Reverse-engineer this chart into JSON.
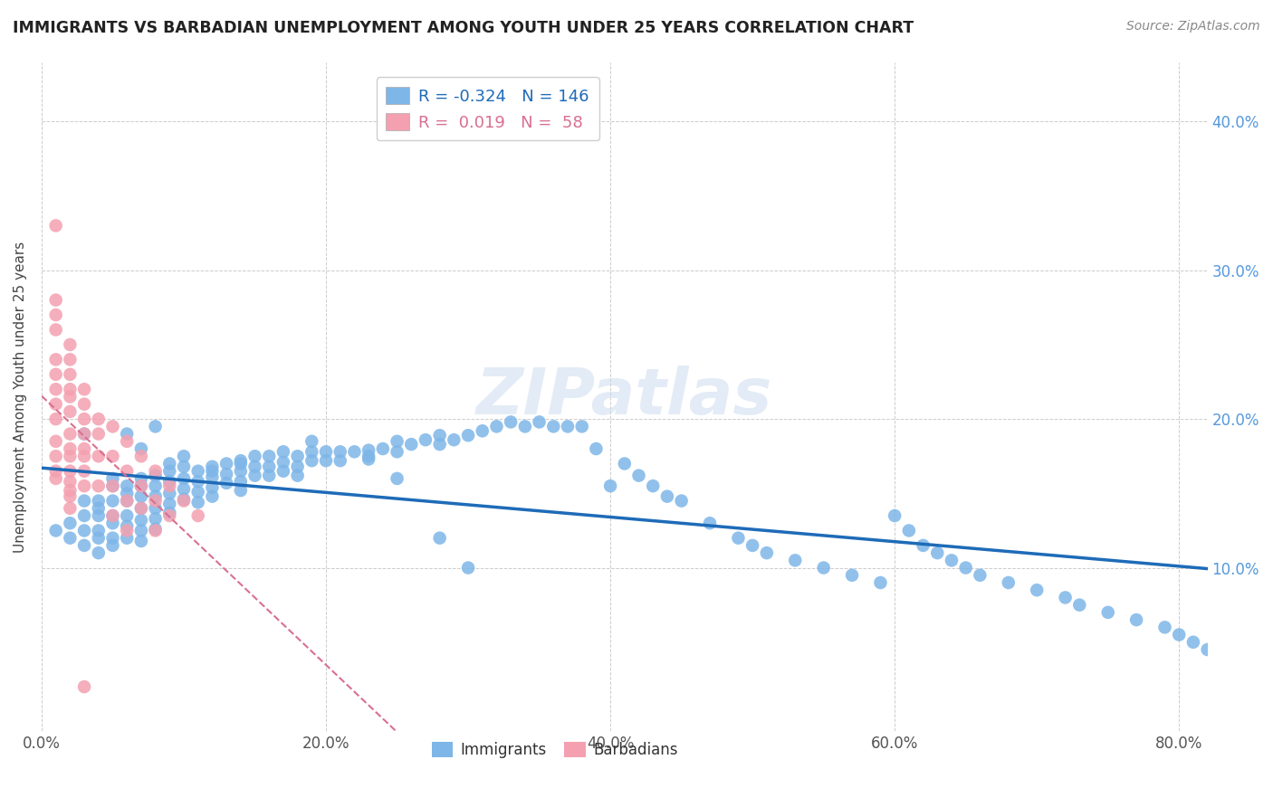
{
  "title": "IMMIGRANTS VS BARBADIAN UNEMPLOYMENT AMONG YOUTH UNDER 25 YEARS CORRELATION CHART",
  "source": "Source: ZipAtlas.com",
  "ylabel": "Unemployment Among Youth under 25 years",
  "xlabel_ticks": [
    "0.0%",
    "20.0%",
    "40.0%",
    "60.0%",
    "80.0%"
  ],
  "ylabel_ticks": [
    "10.0%",
    "20.0%",
    "30.0%",
    "40.0%"
  ],
  "xlim": [
    0.0,
    0.82
  ],
  "ylim": [
    -0.01,
    0.44
  ],
  "legend_blue_R": "-0.324",
  "legend_blue_N": "146",
  "legend_pink_R": "0.019",
  "legend_pink_N": "58",
  "watermark": "ZIPatlas",
  "blue_color": "#7EB6E8",
  "pink_color": "#F4A0B0",
  "blue_line_color": "#1E6BB8",
  "pink_line_color": "#D87090",
  "background_color": "#FFFFFF",
  "grid_color": "#CCCCCC",
  "immigrants_x": [
    0.01,
    0.02,
    0.02,
    0.03,
    0.03,
    0.03,
    0.03,
    0.04,
    0.04,
    0.04,
    0.04,
    0.04,
    0.05,
    0.05,
    0.05,
    0.05,
    0.05,
    0.05,
    0.06,
    0.06,
    0.06,
    0.06,
    0.06,
    0.06,
    0.07,
    0.07,
    0.07,
    0.07,
    0.07,
    0.07,
    0.07,
    0.08,
    0.08,
    0.08,
    0.08,
    0.08,
    0.08,
    0.09,
    0.09,
    0.09,
    0.09,
    0.09,
    0.1,
    0.1,
    0.1,
    0.1,
    0.11,
    0.11,
    0.11,
    0.11,
    0.12,
    0.12,
    0.12,
    0.12,
    0.13,
    0.13,
    0.13,
    0.14,
    0.14,
    0.14,
    0.14,
    0.15,
    0.15,
    0.15,
    0.16,
    0.16,
    0.16,
    0.17,
    0.17,
    0.17,
    0.18,
    0.18,
    0.18,
    0.19,
    0.19,
    0.2,
    0.2,
    0.21,
    0.21,
    0.22,
    0.23,
    0.23,
    0.24,
    0.25,
    0.25,
    0.26,
    0.27,
    0.28,
    0.28,
    0.29,
    0.3,
    0.31,
    0.32,
    0.33,
    0.34,
    0.35,
    0.36,
    0.37,
    0.38,
    0.39,
    0.4,
    0.41,
    0.42,
    0.43,
    0.44,
    0.45,
    0.47,
    0.49,
    0.5,
    0.51,
    0.53,
    0.55,
    0.57,
    0.59,
    0.6,
    0.61,
    0.62,
    0.63,
    0.64,
    0.65,
    0.66,
    0.68,
    0.7,
    0.72,
    0.73,
    0.75,
    0.77,
    0.79,
    0.8,
    0.81,
    0.82,
    0.03,
    0.04,
    0.05,
    0.06,
    0.07,
    0.08,
    0.09,
    0.1,
    0.12,
    0.14,
    0.19,
    0.23,
    0.25,
    0.28,
    0.3
  ],
  "immigrants_y": [
    0.125,
    0.13,
    0.12,
    0.145,
    0.135,
    0.125,
    0.115,
    0.14,
    0.135,
    0.125,
    0.12,
    0.11,
    0.155,
    0.145,
    0.135,
    0.13,
    0.12,
    0.115,
    0.155,
    0.15,
    0.145,
    0.135,
    0.128,
    0.12,
    0.16,
    0.155,
    0.148,
    0.14,
    0.132,
    0.125,
    0.118,
    0.162,
    0.155,
    0.148,
    0.14,
    0.133,
    0.126,
    0.165,
    0.158,
    0.15,
    0.143,
    0.137,
    0.168,
    0.16,
    0.153,
    0.146,
    0.165,
    0.158,
    0.151,
    0.144,
    0.168,
    0.161,
    0.154,
    0.148,
    0.17,
    0.163,
    0.157,
    0.172,
    0.165,
    0.158,
    0.152,
    0.175,
    0.168,
    0.162,
    0.175,
    0.168,
    0.162,
    0.178,
    0.171,
    0.165,
    0.175,
    0.168,
    0.162,
    0.178,
    0.172,
    0.178,
    0.172,
    0.178,
    0.172,
    0.178,
    0.179,
    0.173,
    0.18,
    0.185,
    0.178,
    0.183,
    0.186,
    0.189,
    0.183,
    0.186,
    0.189,
    0.192,
    0.195,
    0.198,
    0.195,
    0.198,
    0.195,
    0.195,
    0.195,
    0.18,
    0.155,
    0.17,
    0.162,
    0.155,
    0.148,
    0.145,
    0.13,
    0.12,
    0.115,
    0.11,
    0.105,
    0.1,
    0.095,
    0.09,
    0.135,
    0.125,
    0.115,
    0.11,
    0.105,
    0.1,
    0.095,
    0.09,
    0.085,
    0.08,
    0.075,
    0.07,
    0.065,
    0.06,
    0.055,
    0.05,
    0.045,
    0.19,
    0.145,
    0.16,
    0.19,
    0.18,
    0.195,
    0.17,
    0.175,
    0.165,
    0.17,
    0.185,
    0.175,
    0.16,
    0.12,
    0.1
  ],
  "barbadians_x": [
    0.01,
    0.01,
    0.01,
    0.01,
    0.01,
    0.01,
    0.01,
    0.01,
    0.01,
    0.01,
    0.01,
    0.01,
    0.01,
    0.02,
    0.02,
    0.02,
    0.02,
    0.02,
    0.02,
    0.02,
    0.02,
    0.02,
    0.02,
    0.02,
    0.02,
    0.02,
    0.02,
    0.03,
    0.03,
    0.03,
    0.03,
    0.03,
    0.03,
    0.03,
    0.03,
    0.03,
    0.04,
    0.04,
    0.04,
    0.04,
    0.05,
    0.05,
    0.05,
    0.05,
    0.06,
    0.06,
    0.06,
    0.06,
    0.07,
    0.07,
    0.07,
    0.08,
    0.08,
    0.08,
    0.09,
    0.09,
    0.1,
    0.11
  ],
  "barbadians_y": [
    0.33,
    0.28,
    0.27,
    0.26,
    0.24,
    0.23,
    0.22,
    0.21,
    0.2,
    0.185,
    0.175,
    0.165,
    0.16,
    0.25,
    0.24,
    0.23,
    0.22,
    0.215,
    0.205,
    0.19,
    0.18,
    0.175,
    0.165,
    0.158,
    0.152,
    0.148,
    0.14,
    0.22,
    0.21,
    0.2,
    0.19,
    0.18,
    0.175,
    0.165,
    0.155,
    0.02,
    0.2,
    0.19,
    0.175,
    0.155,
    0.195,
    0.175,
    0.155,
    0.135,
    0.185,
    0.165,
    0.145,
    0.125,
    0.175,
    0.155,
    0.14,
    0.165,
    0.145,
    0.125,
    0.155,
    0.135,
    0.145,
    0.135
  ]
}
